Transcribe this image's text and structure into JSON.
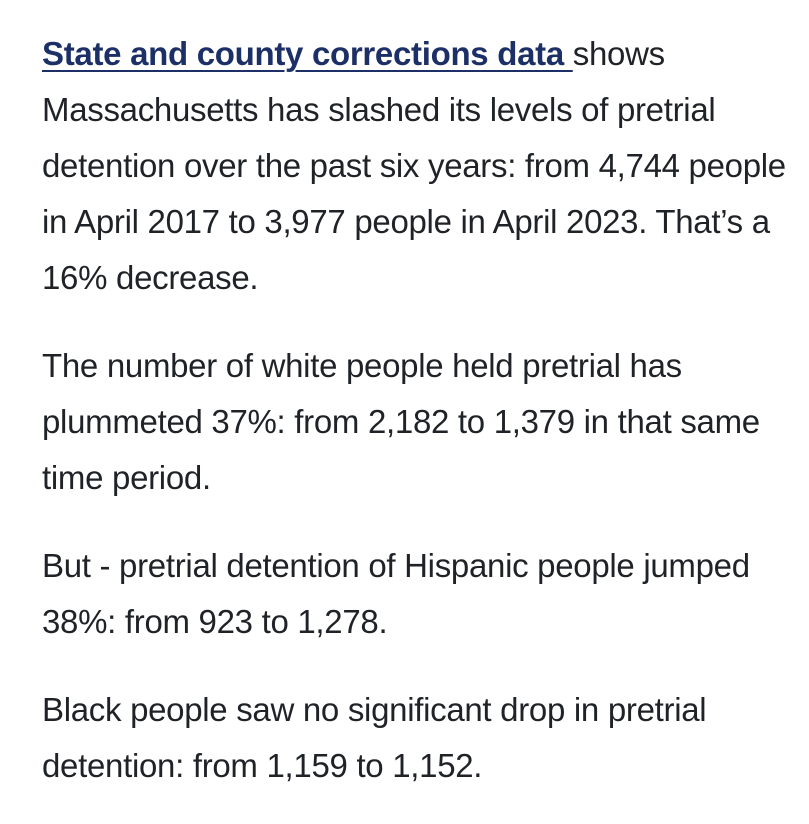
{
  "article": {
    "p1": {
      "link_text": "State and county corrections data ",
      "text": "shows Massachusetts has slashed its levels of pretrial detention over the past six years: from 4,744 people in April 2017 to 3,977 people in April 2023. That’s a 16% decrease."
    },
    "p2": {
      "text": "The number of white people held pretrial has plummeted 37%: from 2,182 to 1,379 in that same time period."
    },
    "p3": {
      "text": "But - pretrial detention of Hispanic people jumped 38%: from 923 to 1,278."
    },
    "p4": {
      "text": "Black people saw no significant drop in pretrial detention: from 1,159 to 1,152."
    }
  },
  "colors": {
    "link": "#1c2f66",
    "text": "#1f2226",
    "background": "#ffffff"
  }
}
